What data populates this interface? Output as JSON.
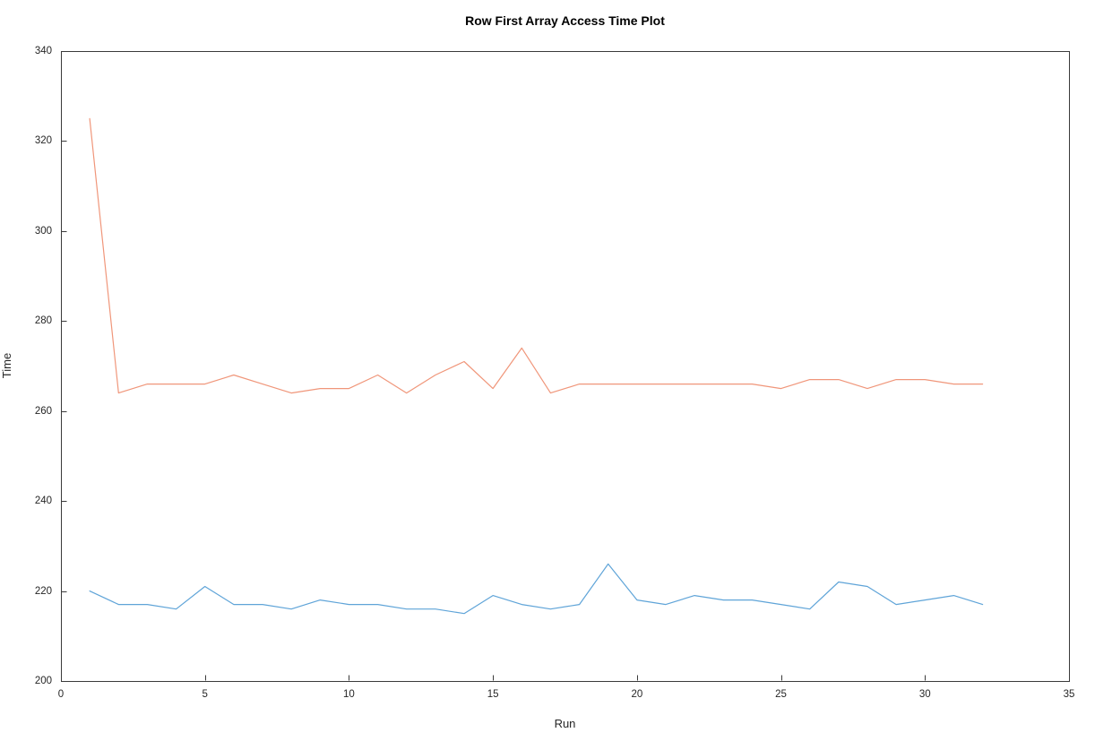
{
  "chart_data": {
    "type": "line",
    "title": "Row First Array Access Time Plot",
    "xlabel": "Run",
    "ylabel": "Time",
    "xlim": [
      0,
      35
    ],
    "ylim": [
      200,
      340
    ],
    "x_ticks": [
      0,
      5,
      10,
      15,
      20,
      25,
      30,
      35
    ],
    "y_ticks": [
      200,
      220,
      240,
      260,
      280,
      300,
      320,
      340
    ],
    "grid": false,
    "legend": "none",
    "frame_color": "#3a3a3a",
    "tick_color": "#3a3a3a",
    "x": [
      1,
      2,
      3,
      4,
      5,
      6,
      7,
      8,
      9,
      10,
      11,
      12,
      13,
      14,
      15,
      16,
      17,
      18,
      19,
      20,
      21,
      22,
      23,
      24,
      25,
      26,
      27,
      28,
      29,
      30,
      31,
      32
    ],
    "series": [
      {
        "name": "blue-line",
        "color": "#5fa4d8",
        "values": [
          220,
          217,
          217,
          216,
          221,
          217,
          217,
          216,
          218,
          217,
          217,
          216,
          216,
          215,
          219,
          217,
          216,
          217,
          226,
          218,
          217,
          219,
          218,
          218,
          217,
          216,
          222,
          221,
          217,
          218,
          219,
          217
        ]
      },
      {
        "name": "orange-line",
        "color": "#f0967a",
        "values": [
          325,
          264,
          266,
          266,
          266,
          268,
          266,
          264,
          265,
          265,
          268,
          264,
          268,
          271,
          265,
          274,
          264,
          266,
          266,
          266,
          266,
          266,
          266,
          266,
          265,
          267,
          267,
          265,
          267,
          267,
          266,
          266
        ]
      }
    ]
  }
}
